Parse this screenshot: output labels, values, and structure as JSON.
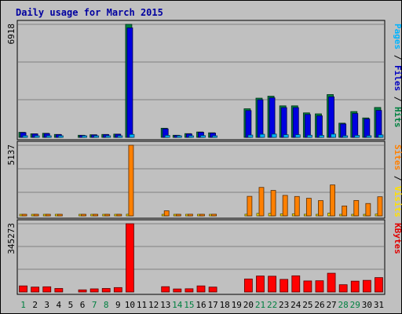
{
  "chart_data": {
    "type": "bar",
    "title": "Daily usage for March 2015",
    "days": [
      "1",
      "2",
      "3",
      "4",
      "5",
      "6",
      "7",
      "8",
      "9",
      "10",
      "11",
      "12",
      "13",
      "14",
      "15",
      "16",
      "17",
      "18",
      "19",
      "20",
      "21",
      "22",
      "23",
      "24",
      "25",
      "26",
      "27",
      "28",
      "29",
      "30",
      "31"
    ],
    "weekend_days": [
      "1",
      "7",
      "8",
      "14",
      "15",
      "21",
      "22",
      "28",
      "29"
    ],
    "panels": [
      {
        "id": "hits",
        "max_label": "6918",
        "ymax": 6918,
        "legend": [
          {
            "text": "Pages",
            "color": "#00b4ff"
          },
          {
            "text": " / ",
            "color": "#000000"
          },
          {
            "text": "Files",
            "color": "#0000c0"
          },
          {
            "text": " / ",
            "color": "#000000"
          },
          {
            "text": "Hits",
            "color": "#008040"
          }
        ],
        "series": [
          {
            "name": "Hits",
            "color": "#008040",
            "values": [
              310,
              220,
              250,
              180,
              0,
              130,
              160,
              180,
              200,
              6918,
              0,
              0,
              560,
              130,
              230,
              330,
              280,
              0,
              0,
              1750,
              2400,
              2520,
              1930,
              1930,
              1500,
              1440,
              2620,
              870,
              1580,
              1190,
              1830
            ]
          },
          {
            "name": "Files",
            "color": "#0000e0",
            "values": [
              290,
              210,
              230,
              170,
              0,
              120,
              150,
              170,
              190,
              6700,
              0,
              0,
              520,
              120,
              210,
              310,
              260,
              0,
              0,
              1640,
              2300,
              2420,
              1820,
              1820,
              1400,
              1320,
              2480,
              820,
              1460,
              1130,
              1650
            ]
          },
          {
            "name": "Pages",
            "color": "#00b4ff",
            "values": [
              100,
              80,
              90,
              60,
              0,
              50,
              60,
              70,
              80,
              180,
              0,
              0,
              120,
              40,
              70,
              110,
              90,
              0,
              0,
              140,
              190,
              200,
              160,
              160,
              130,
              120,
              200,
              80,
              120,
              100,
              150
            ]
          }
        ]
      },
      {
        "id": "visits",
        "max_label": "5137",
        "ymax": 5137,
        "legend": [
          {
            "text": "Sites",
            "color": "#ff8000"
          },
          {
            "text": " / ",
            "color": "#000000"
          },
          {
            "text": "Visits",
            "color": "#ffe000"
          }
        ],
        "series": [
          {
            "name": "Visits",
            "color": "#ffe000",
            "values": [
              40,
              40,
              40,
              40,
              0,
              30,
              30,
              30,
              30,
              120,
              0,
              0,
              70,
              40,
              40,
              50,
              40,
              0,
              0,
              120,
              180,
              180,
              150,
              150,
              120,
              110,
              200,
              70,
              110,
              100,
              130
            ]
          },
          {
            "name": "Sites",
            "color": "#ff8000",
            "values": [
              60,
              60,
              80,
              60,
              0,
              40,
              40,
              40,
              60,
              5137,
              0,
              0,
              370,
              80,
              120,
              110,
              120,
              0,
              0,
              1420,
              2070,
              1850,
              1490,
              1410,
              1280,
              1110,
              2250,
              720,
              1120,
              900,
              1390
            ]
          }
        ]
      },
      {
        "id": "kbytes",
        "max_label": "345273",
        "ymax": 345273,
        "legend": [
          {
            "text": "KBytes",
            "color": "#e00000"
          }
        ],
        "series": [
          {
            "name": "KBytes",
            "color": "#ff0000",
            "values": [
              31000,
              25000,
              26500,
              18000,
              0,
              11000,
              16000,
              18000,
              22500,
              345273,
              0,
              0,
              27000,
              15500,
              16500,
              31000,
              25000,
              0,
              0,
              66000,
              81000,
              80000,
              64000,
              82000,
              56000,
              57000,
              95000,
              37000,
              55000,
              59000,
              73000
            ]
          }
        ]
      }
    ]
  }
}
